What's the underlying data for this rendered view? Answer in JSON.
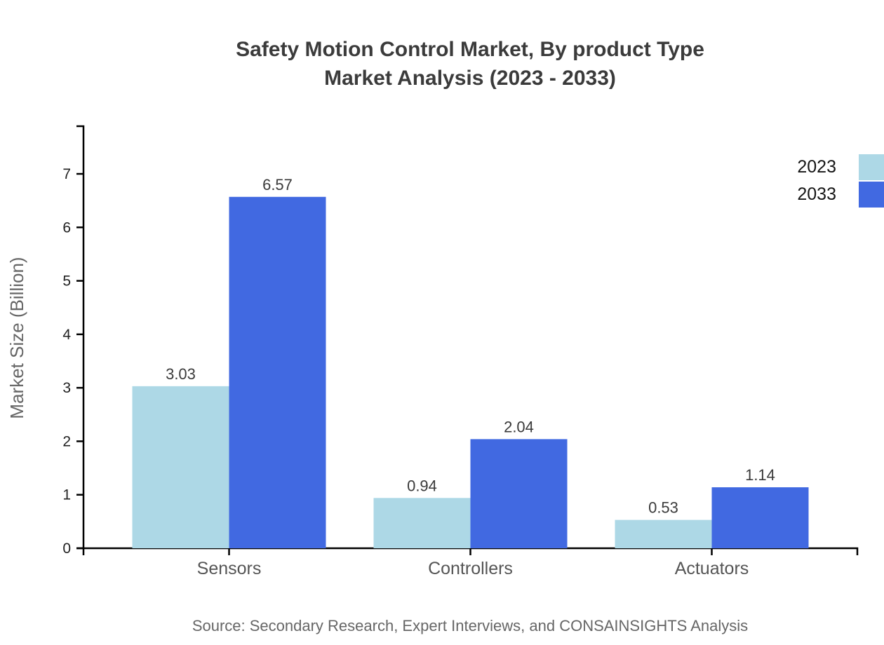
{
  "title": {
    "line1": "Safety Motion Control Market, By product Type",
    "line2": "Market Analysis (2023 - 2033)"
  },
  "source": "Source: Secondary Research, Expert Interviews, and CONSAINSIGHTS Analysis",
  "colors": {
    "series_2023": "#ADD8E6",
    "series_2033": "#4169E1",
    "axis": "#000000",
    "title_text": "#3b3b3b",
    "tick_label": "#222222",
    "category_label": "#555555",
    "value_label": "#3a3a3a",
    "muted_text": "#666666"
  },
  "chart_data": {
    "type": "bar",
    "title": "Safety Motion Control Market, By product Type Market Analysis (2023 - 2033)",
    "categories": [
      "Sensors",
      "Controllers",
      "Actuators"
    ],
    "series": [
      {
        "name": "2023",
        "color": "#ADD8E6",
        "values": [
          3.03,
          0.94,
          0.53
        ]
      },
      {
        "name": "2033",
        "color": "#4169E1",
        "values": [
          6.57,
          2.04,
          1.14
        ]
      }
    ],
    "xlabel": "",
    "ylabel": "Market Size (Billion)",
    "ylim": [
      0,
      7.9
    ],
    "yticks": [
      0,
      1,
      2,
      3,
      4,
      5,
      6,
      7
    ],
    "grid": false,
    "legend_position": "top-right",
    "value_labels": true,
    "value_label_format": "0.00"
  }
}
